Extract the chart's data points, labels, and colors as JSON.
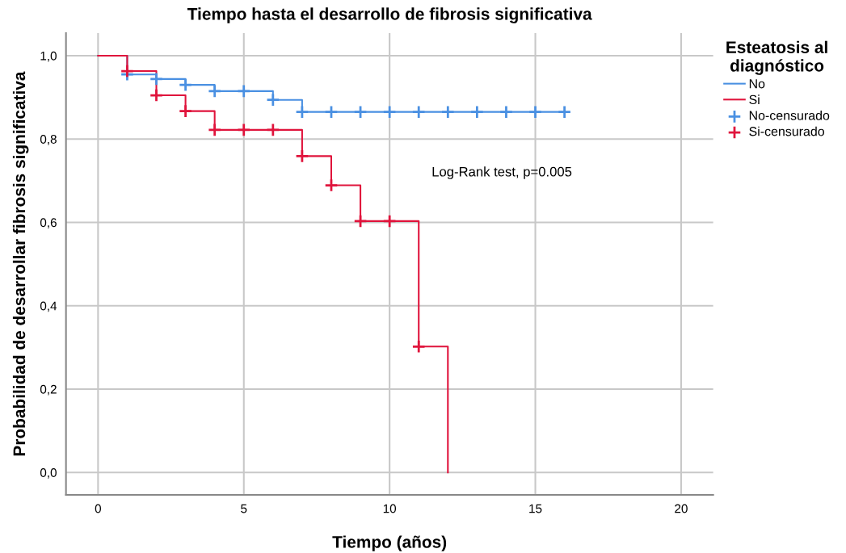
{
  "chart_data": {
    "type": "step",
    "title": "Tiempo hasta el desarrollo de fibrosis significativa",
    "xlabel": "Tiempo (años)",
    "ylabel": "Probabilidad de desarrollar fibrosis significativa",
    "legend_title": "Esteatosis al diagnóstico",
    "series": [
      {
        "name": "No",
        "color": "#4a90e2",
        "marker": "none",
        "x": [
          0,
          1,
          2,
          3,
          4,
          6,
          7,
          16
        ],
        "values": [
          1.0,
          0.955,
          0.944,
          0.93,
          0.915,
          0.894,
          0.865,
          0.865
        ]
      },
      {
        "name": "Si",
        "color": "#e0143c",
        "marker": "none",
        "x": [
          0,
          1,
          2,
          3,
          4,
          7,
          8,
          9,
          11,
          12
        ],
        "values": [
          1.0,
          0.963,
          0.905,
          0.867,
          0.822,
          0.759,
          0.689,
          0.603,
          0.302,
          0.0
        ]
      },
      {
        "name": "No-censurado",
        "type": "scatter",
        "color": "#4a90e2",
        "marker": "cross",
        "x": [
          1,
          2,
          3,
          4,
          5,
          6,
          7,
          8,
          9,
          10,
          11,
          12,
          13,
          14,
          15,
          16
        ],
        "values": [
          0.955,
          0.944,
          0.93,
          0.915,
          0.915,
          0.894,
          0.865,
          0.865,
          0.865,
          0.865,
          0.865,
          0.865,
          0.865,
          0.865,
          0.865,
          0.865
        ]
      },
      {
        "name": "Si-censurado",
        "type": "scatter",
        "color": "#e0143c",
        "marker": "cross",
        "x": [
          1,
          2,
          3,
          4,
          5,
          6,
          7,
          8,
          9,
          10,
          11
        ],
        "values": [
          0.963,
          0.905,
          0.867,
          0.822,
          0.822,
          0.822,
          0.759,
          0.689,
          0.603,
          0.603,
          0.302
        ]
      }
    ],
    "xlim": [
      -1.1,
      21.1
    ],
    "xticks": [
      0,
      5,
      10,
      15,
      20
    ],
    "ylim": [
      -0.054,
      1.054
    ],
    "yticks": [
      {
        "value": 0.0,
        "label": "0,0"
      },
      {
        "value": 0.2,
        "label": "0,2"
      },
      {
        "value": 0.4,
        "label": "0,4"
      },
      {
        "value": 0.6,
        "label": "0,6"
      },
      {
        "value": 0.8,
        "label": "0,8"
      },
      {
        "value": 1.0,
        "label": "1,0"
      }
    ],
    "annotations": [
      "Log-Rank test, p=0.005"
    ],
    "grid": true,
    "legend": "right"
  }
}
